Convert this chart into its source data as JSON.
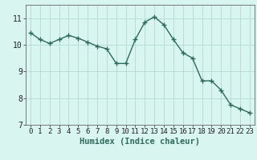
{
  "x": [
    0,
    1,
    2,
    3,
    4,
    5,
    6,
    7,
    8,
    9,
    10,
    11,
    12,
    13,
    14,
    15,
    16,
    17,
    18,
    19,
    20,
    21,
    22,
    23
  ],
  "y": [
    10.45,
    10.2,
    10.05,
    10.2,
    10.35,
    10.25,
    10.1,
    9.95,
    9.85,
    9.3,
    9.3,
    10.2,
    10.85,
    11.05,
    10.75,
    10.2,
    9.7,
    9.5,
    8.65,
    8.65,
    8.3,
    7.75,
    7.6,
    7.45
  ],
  "line_color": "#2e6b5e",
  "marker": "+",
  "bg_color": "#d8f5f0",
  "grid_color": "#b8ddd8",
  "grid_minor_color": "#cce8e4",
  "xlabel": "Humidex (Indice chaleur)",
  "ylim": [
    7,
    11.5
  ],
  "xlim": [
    -0.5,
    23.5
  ],
  "yticks": [
    7,
    8,
    9,
    10,
    11
  ],
  "xticks": [
    0,
    1,
    2,
    3,
    4,
    5,
    6,
    7,
    8,
    9,
    10,
    11,
    12,
    13,
    14,
    15,
    16,
    17,
    18,
    19,
    20,
    21,
    22,
    23
  ],
  "tick_fontsize": 6.5,
  "xlabel_fontsize": 7.5,
  "line_width": 1.0,
  "marker_size": 4
}
